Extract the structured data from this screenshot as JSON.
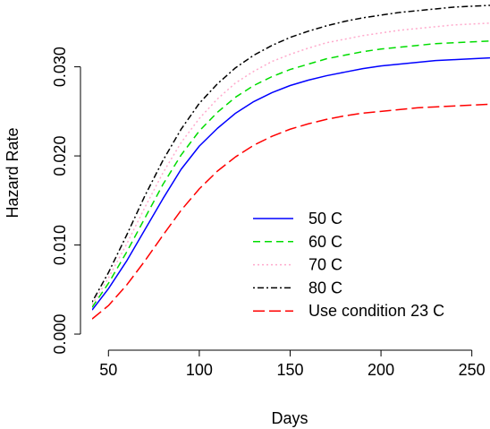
{
  "chart_data": {
    "type": "line",
    "title": "",
    "xlabel": "Days",
    "ylabel": "Hazard Rate",
    "xlim": [
      41,
      260
    ],
    "ylim": [
      -0.0005,
      0.0375
    ],
    "xticks": [
      50,
      100,
      150,
      200,
      250
    ],
    "yticks": [
      0.0,
      0.01,
      0.02,
      0.03
    ],
    "xtick_labels": [
      "50",
      "100",
      "150",
      "200",
      "250"
    ],
    "ytick_labels": [
      "0.000",
      "0.010",
      "0.020",
      "0.030"
    ],
    "grid": false,
    "legend_position": "bottom-right",
    "x": [
      41,
      50,
      60,
      70,
      80,
      90,
      100,
      110,
      120,
      130,
      140,
      150,
      160,
      170,
      180,
      190,
      200,
      210,
      220,
      230,
      240,
      250,
      260
    ],
    "series": [
      {
        "name": "50 C",
        "color": "#0000ff",
        "dash": "solid",
        "values": [
          0.0027,
          0.0051,
          0.0082,
          0.0117,
          0.0152,
          0.0185,
          0.0211,
          0.0231,
          0.0248,
          0.0261,
          0.0271,
          0.0279,
          0.0285,
          0.029,
          0.0294,
          0.0298,
          0.0301,
          0.0303,
          0.0305,
          0.0307,
          0.0308,
          0.0309,
          0.031
        ]
      },
      {
        "name": "60 C",
        "color": "#00dd00",
        "dash": "dashed",
        "values": [
          0.003,
          0.0057,
          0.0092,
          0.013,
          0.0168,
          0.0201,
          0.0228,
          0.0249,
          0.0266,
          0.0279,
          0.0289,
          0.0297,
          0.0303,
          0.0309,
          0.0313,
          0.0317,
          0.032,
          0.0322,
          0.0324,
          0.0326,
          0.0327,
          0.0328,
          0.0329
        ]
      },
      {
        "name": "70 C",
        "color": "#ffaacc",
        "dash": "dotted",
        "values": [
          0.0033,
          0.0063,
          0.0101,
          0.0142,
          0.0181,
          0.0215,
          0.0242,
          0.0264,
          0.0282,
          0.0295,
          0.0306,
          0.0314,
          0.0321,
          0.0327,
          0.0331,
          0.0335,
          0.0338,
          0.0341,
          0.0343,
          0.0345,
          0.0347,
          0.0348,
          0.0349
        ]
      },
      {
        "name": "80 C",
        "color": "#000000",
        "dash": "dotdash",
        "values": [
          0.0036,
          0.0069,
          0.0111,
          0.0155,
          0.0195,
          0.023,
          0.0259,
          0.0281,
          0.0299,
          0.0313,
          0.0324,
          0.0333,
          0.034,
          0.0346,
          0.0351,
          0.0355,
          0.0358,
          0.0361,
          0.0363,
          0.0365,
          0.0367,
          0.0368,
          0.0369
        ]
      },
      {
        "name": "Use condition 23 C",
        "color": "#ff0000",
        "dash": "longdash",
        "values": [
          0.0017,
          0.0032,
          0.0055,
          0.0082,
          0.0111,
          0.0139,
          0.0163,
          0.0183,
          0.0199,
          0.0212,
          0.0222,
          0.023,
          0.0236,
          0.0241,
          0.0245,
          0.0248,
          0.025,
          0.0252,
          0.0254,
          0.0255,
          0.0256,
          0.0257,
          0.0258
        ]
      }
    ]
  }
}
